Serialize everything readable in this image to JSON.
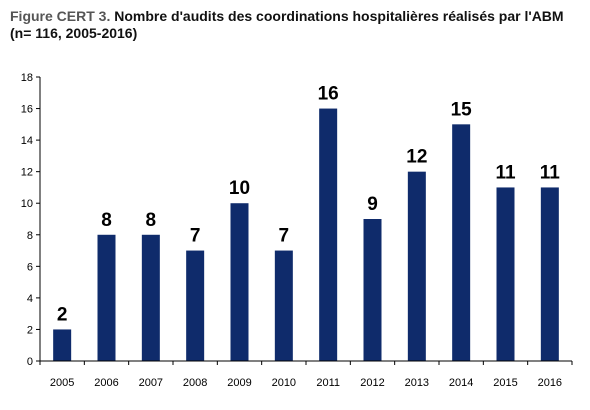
{
  "title": {
    "prefix": "Figure CERT 3.",
    "text": "Nombre d'audits des coordinations hospitalières réalisés par l'ABM (n= 116, 2005-2016)"
  },
  "colors": {
    "bar": "#0f2b6b",
    "axis": "#000000"
  },
  "chart_data": {
    "type": "bar",
    "title": "Figure CERT 3. Nombre d'audits des coordinations hospitalières réalisés par l'ABM (n= 116, 2005-2016)",
    "categories": [
      "2005",
      "2006",
      "2007",
      "2008",
      "2009",
      "2010",
      "2011",
      "2012",
      "2013",
      "2014",
      "2015",
      "2016"
    ],
    "values": [
      2,
      8,
      8,
      7,
      10,
      7,
      16,
      9,
      12,
      15,
      11,
      11
    ],
    "data_labels": [
      "2",
      "8",
      "8",
      "7",
      "10",
      "7",
      "16",
      "9",
      "12",
      "15",
      "11",
      "11"
    ],
    "ylim": [
      0,
      18
    ],
    "yticks": [
      "0",
      "2",
      "4",
      "6",
      "8",
      "10",
      "12",
      "14",
      "16",
      "18"
    ],
    "grid": false,
    "legend": "none"
  }
}
